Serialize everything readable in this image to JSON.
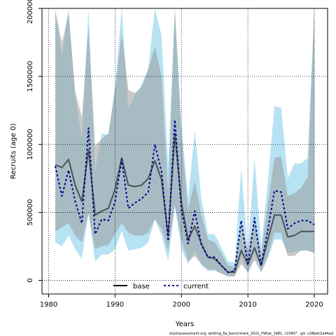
{
  "chart_data": {
    "type": "line",
    "title": "",
    "xlabel": "Years",
    "ylabel": "Recruits (age 0)",
    "xlim": [
      1979,
      2022
    ],
    "ylim": [
      -100000,
      2000000
    ],
    "xticks": [
      1980,
      1990,
      2000,
      2010,
      2020
    ],
    "xtick_labels": [
      "1980",
      "1990",
      "2000",
      "2010",
      "2020"
    ],
    "yticks": [
      0,
      500000,
      1000000,
      1500000,
      2000000
    ],
    "ytick_labels": [
      "0",
      "500000",
      "1000000",
      "1500000",
      "2000000"
    ],
    "grid": true,
    "legend_position": "bottom-center",
    "colors": {
      "base": "#000000",
      "current": "#00008b",
      "base_band": "#9a9a9a",
      "current_band": "#87ceeb"
    },
    "x": [
      1981,
      1982,
      1983,
      1984,
      1985,
      1986,
      1987,
      1988,
      1989,
      1990,
      1991,
      1992,
      1993,
      1994,
      1995,
      1996,
      1997,
      1998,
      1999,
      2000,
      2001,
      2002,
      2003,
      2004,
      2005,
      2006,
      2007,
      2008,
      2009,
      2010,
      2011,
      2012,
      2013,
      2014,
      2015,
      2016,
      2017,
      2018,
      2019,
      2020
    ],
    "series": [
      {
        "name": "base",
        "style": "solid",
        "values": [
          850000,
          830000,
          890000,
          700000,
          580000,
          960000,
          480000,
          510000,
          530000,
          670000,
          900000,
          700000,
          690000,
          700000,
          750000,
          880000,
          740000,
          330000,
          1080000,
          570000,
          300000,
          400000,
          270000,
          170000,
          160000,
          110000,
          60000,
          60000,
          220000,
          120000,
          240000,
          110000,
          300000,
          480000,
          480000,
          320000,
          330000,
          360000,
          360000,
          360000
        ],
        "lower": [
          360000,
          390000,
          420000,
          330000,
          280000,
          490000,
          230000,
          250000,
          260000,
          340000,
          420000,
          350000,
          330000,
          330000,
          350000,
          450000,
          380000,
          210000,
          560000,
          300000,
          140000,
          180000,
          120000,
          80000,
          80000,
          50000,
          30000,
          30000,
          120000,
          60000,
          150000,
          60000,
          180000,
          350000,
          350000,
          180000,
          180000,
          220000,
          220000,
          200000
        ],
        "upper": [
          1980000,
          1750000,
          1960000,
          1390000,
          1200000,
          1860000,
          990000,
          1040000,
          1080000,
          1400000,
          1820000,
          1400000,
          1380000,
          1420000,
          1550000,
          1720000,
          1500000,
          640000,
          2000000,
          1050000,
          520000,
          730000,
          480000,
          300000,
          280000,
          200000,
          110000,
          100000,
          420000,
          220000,
          450000,
          200000,
          560000,
          900000,
          910000,
          620000,
          640000,
          680000,
          760000,
          2000000
        ]
      },
      {
        "name": "current",
        "style": "dotted",
        "values": [
          840000,
          620000,
          810000,
          580000,
          420000,
          1120000,
          340000,
          450000,
          440000,
          580000,
          890000,
          530000,
          570000,
          600000,
          650000,
          1000000,
          800000,
          290000,
          1180000,
          510000,
          270000,
          510000,
          260000,
          170000,
          170000,
          110000,
          60000,
          70000,
          440000,
          110000,
          460000,
          110000,
          370000,
          660000,
          650000,
          380000,
          420000,
          440000,
          440000,
          410000
        ],
        "lower": [
          280000,
          250000,
          330000,
          230000,
          160000,
          500000,
          140000,
          190000,
          190000,
          230000,
          360000,
          220000,
          230000,
          240000,
          280000,
          450000,
          330000,
          140000,
          540000,
          230000,
          120000,
          220000,
          110000,
          70000,
          70000,
          50000,
          30000,
          30000,
          170000,
          50000,
          190000,
          60000,
          160000,
          300000,
          300000,
          200000,
          210000,
          220000,
          220000,
          200000
        ],
        "upper": [
          2000000,
          1650000,
          2000000,
          1350000,
          1050000,
          2000000,
          800000,
          1080000,
          1070000,
          1420000,
          2000000,
          1260000,
          1360000,
          1440000,
          1560000,
          2000000,
          1800000,
          850000,
          2000000,
          1150000,
          600000,
          1100000,
          600000,
          340000,
          340000,
          240000,
          140000,
          130000,
          820000,
          220000,
          900000,
          250000,
          720000,
          1280000,
          1270000,
          750000,
          860000,
          860000,
          900000,
          2000000
        ]
      }
    ]
  },
  "footer": "stockassessment.org, whiting_6a_benchmark_2021_PWise_1981, r13907 , git: c28bdc2a44ad"
}
